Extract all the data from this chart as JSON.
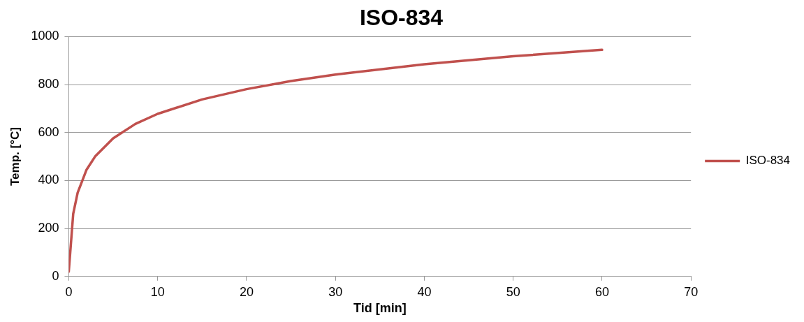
{
  "chart_data": {
    "type": "line",
    "title": "ISO-834",
    "xlabel": "Tid [min]",
    "ylabel": "Temp. [°C]",
    "x": [
      0,
      0.5,
      1,
      2,
      3,
      5,
      7.5,
      10,
      15,
      20,
      25,
      30,
      40,
      50,
      60
    ],
    "series": [
      {
        "name": "ISO-834",
        "color": "#c0504d",
        "values": [
          20,
          261,
          349,
          445,
          502,
          576,
          636,
          678,
          738,
          781,
          815,
          842,
          885,
          918,
          945
        ]
      }
    ],
    "xlim": [
      0,
      70
    ],
    "xticks": [
      0,
      10,
      20,
      30,
      40,
      50,
      60,
      70
    ],
    "ylim": [
      0,
      1000
    ],
    "yticks": [
      0,
      200,
      400,
      600,
      800,
      1000
    ],
    "grid": "y",
    "legend": "right",
    "marker": "none",
    "line_style": "solid"
  }
}
